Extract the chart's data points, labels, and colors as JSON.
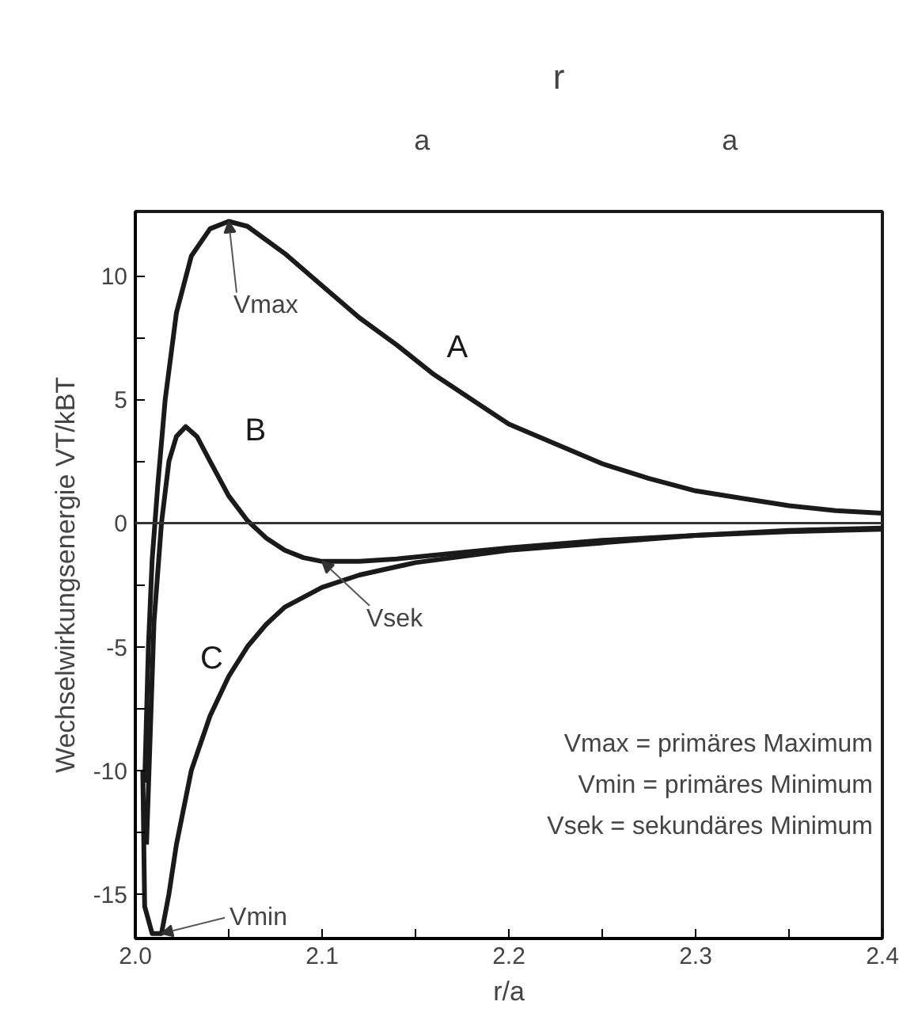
{
  "chart_data": {
    "type": "line",
    "xlabel": "r/a",
    "ylabel": "Wechselwirkungsenergie VT/kBT",
    "series": [
      {
        "name": "A",
        "color": "#1a1a1a",
        "x": [
          2.005,
          2.007,
          2.009,
          2.012,
          2.016,
          2.022,
          2.03,
          2.04,
          2.05,
          2.06,
          2.08,
          2.1,
          2.12,
          2.14,
          2.16,
          2.18,
          2.2,
          2.225,
          2.25,
          2.275,
          2.3,
          2.325,
          2.35,
          2.375,
          2.4
        ],
        "values": [
          -10.5,
          -5,
          -1.5,
          1.5,
          5,
          8.5,
          10.8,
          11.9,
          12.2,
          12.0,
          10.9,
          9.6,
          8.3,
          7.2,
          6.0,
          5.0,
          4.0,
          3.2,
          2.4,
          1.8,
          1.3,
          1.0,
          0.7,
          0.5,
          0.4
        ]
      },
      {
        "name": "B",
        "color": "#1a1a1a",
        "x": [
          2.006,
          2.01,
          2.014,
          2.018,
          2.022,
          2.027,
          2.033,
          2.04,
          2.05,
          2.06,
          2.07,
          2.08,
          2.09,
          2.1,
          2.12,
          2.14,
          2.16,
          2.2,
          2.25,
          2.3,
          2.35,
          2.4
        ],
        "values": [
          -13,
          -4,
          0,
          2.5,
          3.5,
          3.9,
          3.5,
          2.5,
          1.1,
          0.1,
          -0.6,
          -1.1,
          -1.4,
          -1.55,
          -1.55,
          -1.45,
          -1.3,
          -1.0,
          -0.7,
          -0.5,
          -0.3,
          -0.2
        ]
      },
      {
        "name": "C",
        "color": "#1a1a1a",
        "x": [
          2.004,
          2.005,
          2.009,
          2.014,
          2.018,
          2.022,
          2.03,
          2.04,
          2.05,
          2.06,
          2.07,
          2.08,
          2.1,
          2.12,
          2.15,
          2.2,
          2.25,
          2.3,
          2.35,
          2.4
        ],
        "values": [
          -10,
          -15.5,
          -16.6,
          -16.6,
          -15,
          -13,
          -10,
          -7.8,
          -6.2,
          -5.0,
          -4.1,
          -3.4,
          -2.6,
          -2.1,
          -1.6,
          -1.1,
          -0.8,
          -0.5,
          -0.35,
          -0.25
        ]
      }
    ],
    "xlim": [
      2.0,
      2.4
    ],
    "ylim": [
      -16.8,
      12.6
    ],
    "xticks": [
      {
        "value": 2.0,
        "label": "2.0"
      },
      {
        "value": 2.05,
        "label": null
      },
      {
        "value": 2.1,
        "label": "2.1"
      },
      {
        "value": 2.15,
        "label": null
      },
      {
        "value": 2.2,
        "label": "2.2"
      },
      {
        "value": 2.25,
        "label": null
      },
      {
        "value": 2.3,
        "label": "2.3"
      },
      {
        "value": 2.35,
        "label": null
      },
      {
        "value": 2.4,
        "label": "2.4"
      }
    ],
    "yticks": [
      {
        "value": -15,
        "label": "-15"
      },
      {
        "value": -12.5,
        "label": null
      },
      {
        "value": -10,
        "label": "-10"
      },
      {
        "value": -7.5,
        "label": null
      },
      {
        "value": -5,
        "label": "-5"
      },
      {
        "value": -2.5,
        "label": null
      },
      0,
      {
        "value": 2.5,
        "label": null
      },
      5,
      {
        "value": 7.5,
        "label": null
      },
      10
    ],
    "ref_lines": [
      {
        "axis": "y",
        "value": 0,
        "color": "#333333"
      }
    ],
    "grid": false,
    "marker": "none",
    "line_style": "solid",
    "annotations": [
      "a",
      "r",
      "a",
      {
        "text": "Vmax",
        "x": 2.05,
        "y": 12.2
      },
      {
        "text": "Vsek",
        "x": 2.1,
        "y": -1.55
      },
      {
        "text": "Vmin",
        "x": 2.014,
        "y": -16.6
      },
      "Vmax = primäres Maximum",
      "Vmin = primäres Minimum",
      "Vsek = sekundäres Minimum"
    ]
  }
}
